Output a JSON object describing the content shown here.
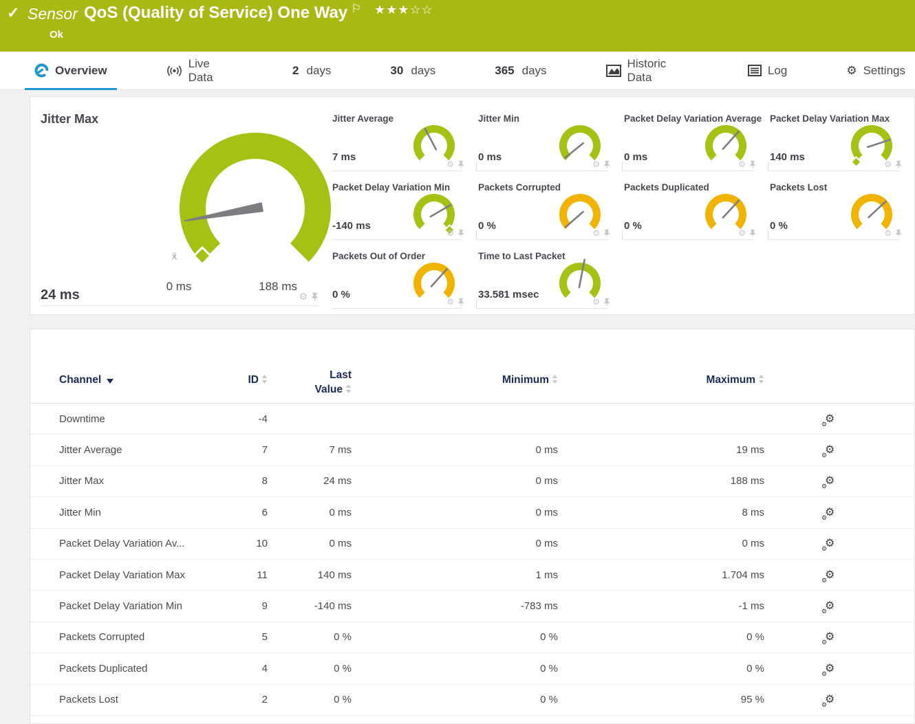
{
  "banner": {
    "check_icon": "✓",
    "kind": "Sensor",
    "title": "QoS (Quality of Service) One Way",
    "flag_icon": "⚐",
    "rating": {
      "filled": 3,
      "total": 5
    },
    "status": "Ok"
  },
  "tabs": [
    {
      "label": "Overview",
      "icon": "gauge-icon",
      "active": true
    },
    {
      "label": "Live Data",
      "icon": "broadcast-icon"
    },
    {
      "prefix": "2",
      "label": "days"
    },
    {
      "prefix": "30",
      "label": "days"
    },
    {
      "prefix": "365",
      "label": "days"
    },
    {
      "label": "Historic Data",
      "icon": "chart-icon"
    },
    {
      "label": "Log",
      "icon": "log-icon"
    },
    {
      "label": "Settings",
      "icon": "gear-icon"
    }
  ],
  "colors": {
    "banner_green": "#a9b812",
    "gauge_green": "#a5c113",
    "gauge_orange": "#f0b400",
    "needle_gray": "#7d7d81",
    "accent_blue": "#1e96d2",
    "header_navy": "#1b2b57",
    "light_icon_gray": "#c6c6c6"
  },
  "main_gauge": {
    "title": "Jitter Max",
    "value": "24 ms",
    "scale_min": "0 ms",
    "scale_max": "188 ms",
    "avg_marker_label": "x̄",
    "needle_angle_deg": 190,
    "color": "green"
  },
  "mini_gauges": [
    {
      "title": "Jitter Average",
      "value": "7 ms",
      "color": "green",
      "needle_angle_deg": 118,
      "needle_len": 28,
      "marker": "none"
    },
    {
      "title": "Jitter Min",
      "value": "0 ms",
      "color": "green",
      "needle_angle_deg": 219,
      "needle_len": 28,
      "marker": "none"
    },
    {
      "title": "Packet Delay Variation Average",
      "value": "0 ms",
      "color": "green",
      "needle_angle_deg": 48,
      "needle_len": 28,
      "marker": "none"
    },
    {
      "title": "Packet Delay Variation Max",
      "value": "140 ms",
      "color": "green",
      "needle_angle_deg": 18,
      "needle_len": 28,
      "marker": "start"
    },
    {
      "title": "Packet Delay Variation Min",
      "value": "-140 ms",
      "color": "green",
      "needle_angle_deg": 30,
      "needle_len": 28,
      "marker": "end"
    },
    {
      "title": "Packets Corrupted",
      "value": "0 %",
      "color": "orange",
      "needle_angle_deg": 221,
      "needle_len": 28,
      "marker": "none"
    },
    {
      "title": "Packets Duplicated",
      "value": "0 %",
      "color": "orange",
      "needle_angle_deg": 47,
      "needle_len": 28,
      "marker": "none"
    },
    {
      "title": "Packets Lost",
      "value": "0 %",
      "color": "orange",
      "needle_angle_deg": 43,
      "needle_len": 28,
      "marker": "none"
    },
    {
      "title": "Packets Out of Order",
      "value": "0 %",
      "color": "orange",
      "needle_angle_deg": 48,
      "needle_len": 28,
      "marker": "none"
    },
    {
      "title": "Time to Last Packet",
      "value": "33.581 msec",
      "color": "green",
      "needle_angle_deg": 79,
      "needle_len": 35,
      "marker": "none"
    }
  ],
  "table": {
    "headers": {
      "channel": "Channel",
      "id": "ID",
      "last_value_line1": "Last",
      "last_value_line2": "Value",
      "minimum": "Minimum",
      "maximum": "Maximum"
    },
    "rows": [
      {
        "channel": "Downtime",
        "id": "-4",
        "last": "",
        "min": "",
        "max": ""
      },
      {
        "channel": "Jitter Average",
        "id": "7",
        "last": "7 ms",
        "min": "0 ms",
        "max": "19 ms"
      },
      {
        "channel": "Jitter Max",
        "id": "8",
        "last": "24 ms",
        "min": "0 ms",
        "max": "188 ms"
      },
      {
        "channel": "Jitter Min",
        "id": "6",
        "last": "0 ms",
        "min": "0 ms",
        "max": "8 ms"
      },
      {
        "channel": "Packet Delay Variation Av...",
        "id": "10",
        "last": "0 ms",
        "min": "0 ms",
        "max": "0 ms"
      },
      {
        "channel": "Packet Delay Variation Max",
        "id": "11",
        "last": "140 ms",
        "min": "1 ms",
        "max": "1.704 ms"
      },
      {
        "channel": "Packet Delay Variation Min",
        "id": "9",
        "last": "-140 ms",
        "min": "-783 ms",
        "max": "-1 ms"
      },
      {
        "channel": "Packets Corrupted",
        "id": "5",
        "last": "0 %",
        "min": "0 %",
        "max": "0 %"
      },
      {
        "channel": "Packets Duplicated",
        "id": "4",
        "last": "0 %",
        "min": "0 %",
        "max": "0 %"
      },
      {
        "channel": "Packets Lost",
        "id": "2",
        "last": "0 %",
        "min": "0 %",
        "max": "95 %"
      }
    ]
  }
}
